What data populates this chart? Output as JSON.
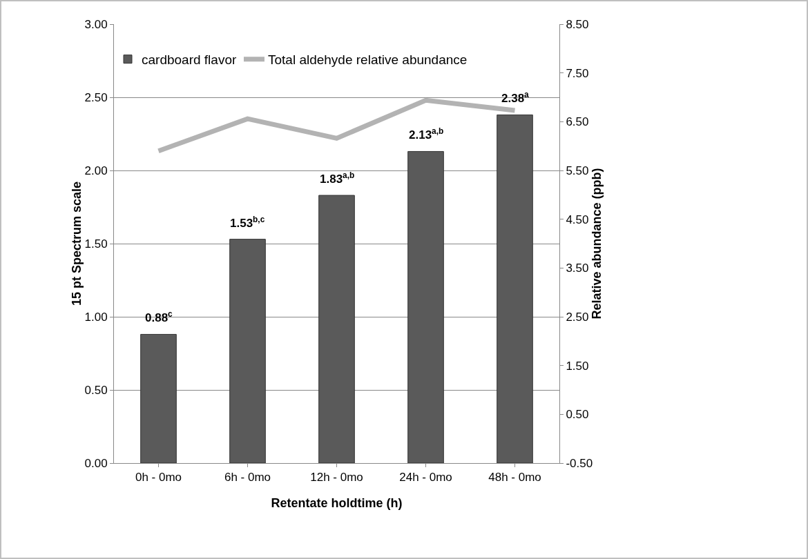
{
  "chart_data": {
    "type": "bar",
    "xlabel": "Retentate holdtime (h)",
    "ylabel": "15 pt Spectrum scale",
    "y2label": "Relative abundance (ppb)",
    "categories": [
      "0h - 0mo",
      "6h - 0mo",
      "12h - 0mo",
      "24h - 0mo",
      "48h - 0mo"
    ],
    "series": [
      {
        "name": "cardboard flavor",
        "color": "#5a5a5a",
        "values": [
          0.88,
          1.53,
          1.83,
          2.13,
          2.38
        ],
        "value_labels": [
          "0.88$^{c}$",
          "1.53$^{b,c}$",
          "1.83$^{a,b}$",
          "2.13$^{a,b}$",
          "2.38$^{a}$"
        ]
      },
      {
        "name": "Total aldehyde relative abundance",
        "type": "line",
        "axis": "y2",
        "color": "#b3b3b3",
        "values": [
          5.9,
          6.56,
          6.16,
          6.94,
          6.73
        ]
      }
    ],
    "ylim": [
      0,
      3
    ],
    "yticks": [
      {
        "value": 0,
        "label": "0.00"
      },
      {
        "value": 0.5,
        "label": "0.50"
      },
      {
        "value": 1,
        "label": "1.00"
      },
      {
        "value": 1.5,
        "label": "1.50"
      },
      {
        "value": 2,
        "label": "2.00"
      },
      {
        "value": 2.5,
        "label": "2.50"
      },
      {
        "value": 3,
        "label": "3.00"
      }
    ],
    "y2lim": [
      -0.5,
      8.5
    ],
    "y2ticks": [
      {
        "value": -0.5,
        "label": "-0.50"
      },
      {
        "value": 0.5,
        "label": "0.50"
      },
      {
        "value": 1.5,
        "label": "1.50"
      },
      {
        "value": 2.5,
        "label": "2.50"
      },
      {
        "value": 3.5,
        "label": "3.50"
      },
      {
        "value": 4.5,
        "label": "4.50"
      },
      {
        "value": 5.5,
        "label": "5.50"
      },
      {
        "value": 6.5,
        "label": "6.50"
      },
      {
        "value": 7.5,
        "label": "7.50"
      },
      {
        "value": 8.5,
        "label": "8.50"
      }
    ],
    "grid": "y",
    "legend": "top left",
    "marker": "none",
    "line_style": "solid"
  }
}
